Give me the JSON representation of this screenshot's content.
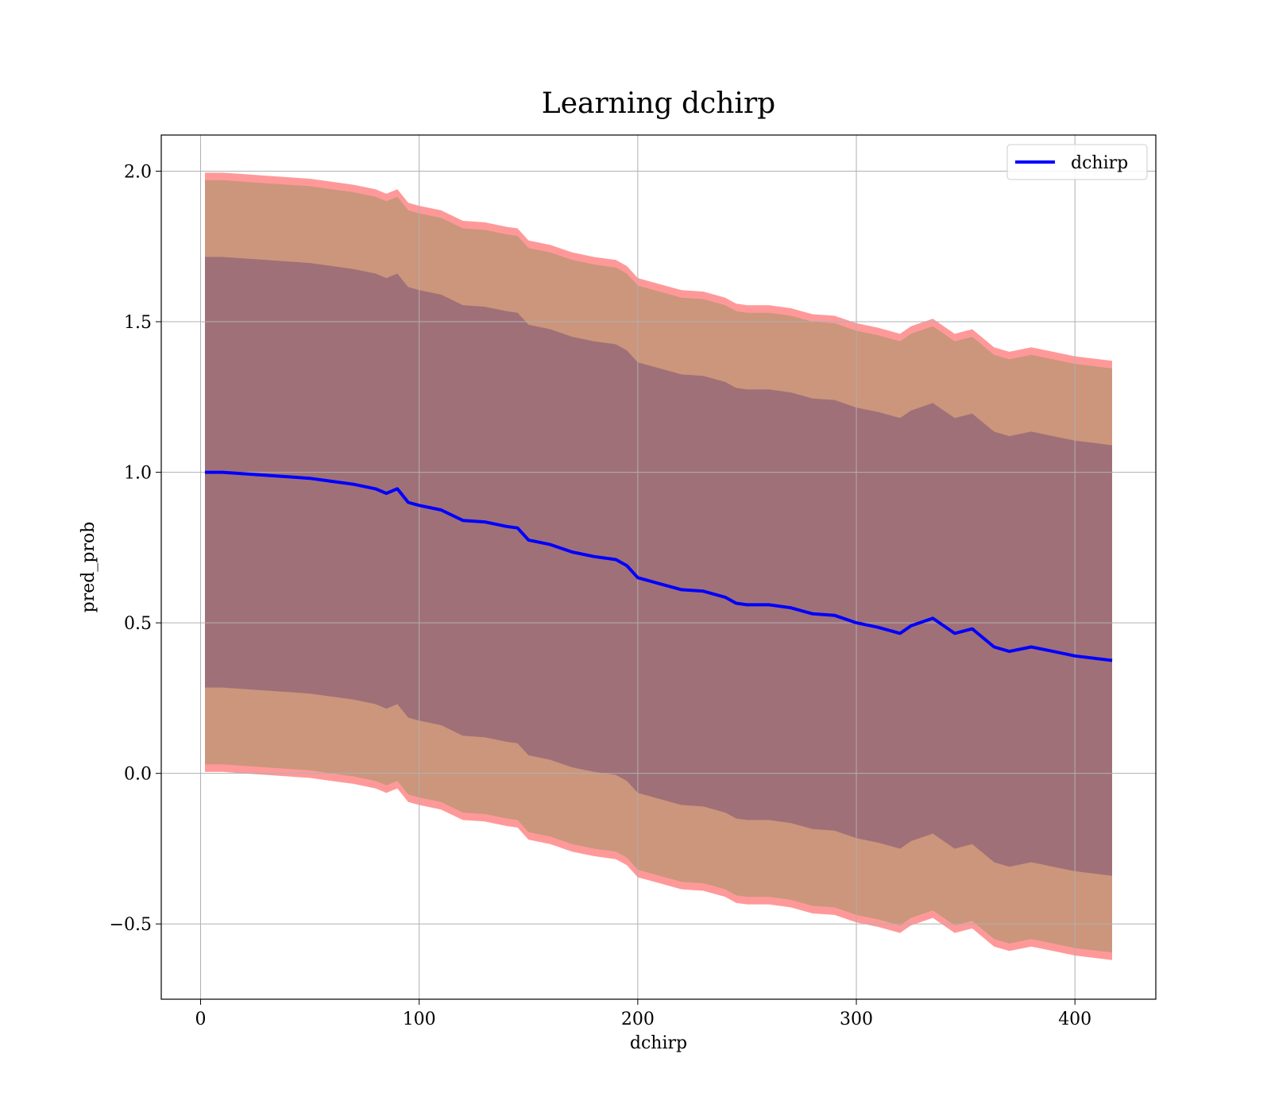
{
  "chart_data": {
    "type": "line",
    "title": "Learning dchirp",
    "xlabel": "dchirp",
    "ylabel": "pred_prob",
    "xlim": [
      -18,
      437
    ],
    "ylim": [
      -0.75,
      2.12
    ],
    "xticks": [
      0,
      100,
      200,
      300,
      400
    ],
    "xtick_labels": [
      "0",
      "100",
      "200",
      "300",
      "400"
    ],
    "yticks": [
      -0.5,
      0.0,
      0.5,
      1.0,
      1.5,
      2.0
    ],
    "ytick_labels": [
      "−0.5",
      "0.0",
      "0.5",
      "1.0",
      "1.5",
      "2.0"
    ],
    "grid": true,
    "legend": {
      "position": "upper right",
      "entries": [
        "dchirp"
      ]
    },
    "colors": {
      "line": "#0000ff",
      "outer_band": "#ff9999",
      "middle_band": "#c8967a",
      "inner_band": "#a07078",
      "grid": "#b0b0b0",
      "axes": "#000000"
    },
    "series": [
      {
        "name": "dchirp",
        "x": [
          2,
          10,
          20,
          30,
          40,
          50,
          60,
          70,
          80,
          85,
          90,
          95,
          100,
          110,
          120,
          130,
          140,
          145,
          150,
          160,
          170,
          180,
          190,
          195,
          200,
          210,
          220,
          230,
          240,
          245,
          250,
          260,
          270,
          280,
          290,
          300,
          310,
          320,
          325,
          335,
          345,
          353,
          363,
          370,
          380,
          390,
          400,
          417
        ],
        "y": [
          1.0,
          1.0,
          0.995,
          0.99,
          0.985,
          0.98,
          0.97,
          0.96,
          0.945,
          0.93,
          0.945,
          0.9,
          0.89,
          0.875,
          0.84,
          0.835,
          0.82,
          0.815,
          0.775,
          0.76,
          0.735,
          0.72,
          0.71,
          0.69,
          0.65,
          0.63,
          0.61,
          0.605,
          0.585,
          0.565,
          0.56,
          0.56,
          0.55,
          0.53,
          0.525,
          0.5,
          0.485,
          0.465,
          0.49,
          0.515,
          0.465,
          0.48,
          0.42,
          0.405,
          0.42,
          0.405,
          0.39,
          0.375
        ]
      }
    ],
    "bands": [
      {
        "name": "inner",
        "half_width": 0.715
      },
      {
        "name": "middle",
        "half_width": 0.97
      },
      {
        "name": "outer",
        "half_width": 0.995
      }
    ]
  }
}
